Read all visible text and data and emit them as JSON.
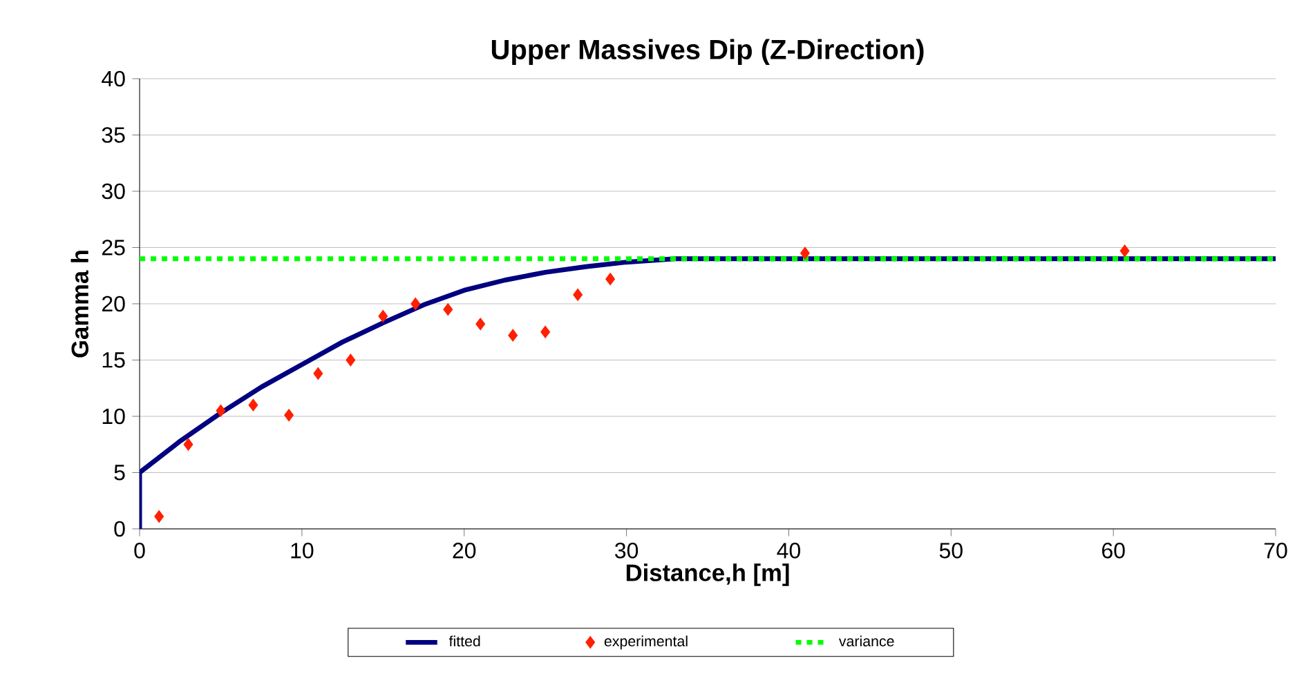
{
  "chart_data": {
    "type": "scatter",
    "title": "Upper Massives Dip  (Z-Direction)",
    "xlabel": "Distance,h [m]",
    "ylabel": "Gamma h",
    "xlim": [
      0,
      70
    ],
    "ylim": [
      0,
      40
    ],
    "xticks": [
      0,
      10,
      20,
      30,
      40,
      50,
      60,
      70
    ],
    "yticks": [
      0,
      5,
      10,
      15,
      20,
      25,
      30,
      35,
      40
    ],
    "grid": "y",
    "legend": "bottom",
    "series": [
      {
        "name": "fitted",
        "type": "line",
        "color": "#000080",
        "marker": "none",
        "line_style": "solid",
        "x": [
          0,
          0,
          2.5,
          5,
          7.5,
          10,
          12.5,
          15,
          17.5,
          20,
          22.5,
          25,
          27.5,
          30,
          33,
          40,
          50,
          60,
          70
        ],
        "values": [
          0,
          5,
          7.8,
          10.3,
          12.6,
          14.6,
          16.6,
          18.3,
          19.9,
          21.2,
          22.1,
          22.8,
          23.3,
          23.7,
          24,
          24,
          24,
          24,
          24
        ]
      },
      {
        "name": "experimental",
        "color": "#ff2000",
        "marker": "diamond",
        "x": [
          1.2,
          3,
          5,
          7,
          9.2,
          11,
          13,
          15,
          17,
          19,
          21,
          23,
          25,
          27,
          29,
          41,
          60.7
        ],
        "values": [
          1.1,
          7.5,
          10.5,
          11,
          10.1,
          13.8,
          15,
          18.9,
          20,
          19.5,
          18.2,
          17.2,
          17.5,
          20.8,
          22.2,
          24.5,
          24.7
        ]
      },
      {
        "name": "variance",
        "type": "line",
        "color": "#00ff00",
        "marker": "none",
        "line_style": "dashed",
        "x": [
          0,
          70
        ],
        "values": [
          24,
          24
        ]
      }
    ]
  }
}
